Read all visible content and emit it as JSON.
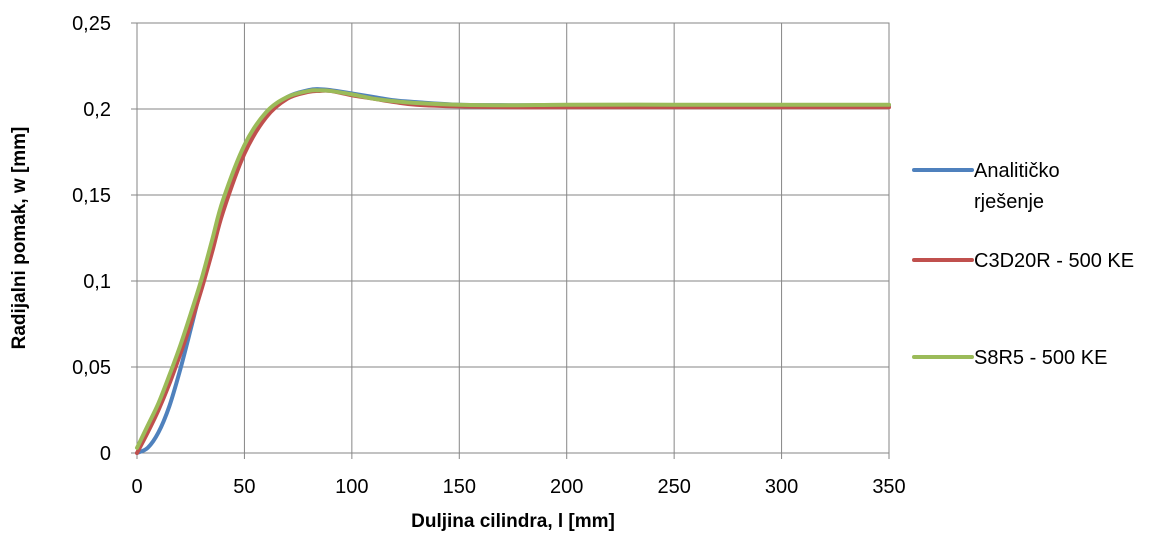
{
  "chart_data": {
    "type": "line",
    "title": "",
    "xlabel": "Duljina cilindra, l [mm]",
    "ylabel": "Radijalni pomak, w [mm]",
    "xlim": [
      0,
      350
    ],
    "ylim": [
      0,
      0.25
    ],
    "x_ticks": [
      0,
      50,
      100,
      150,
      200,
      250,
      300,
      350
    ],
    "x_tick_labels": [
      "0",
      "50",
      "100",
      "150",
      "200",
      "250",
      "300",
      "350"
    ],
    "y_ticks": [
      0,
      0.05,
      0.1,
      0.15,
      0.2,
      0.25
    ],
    "y_tick_labels": [
      "0",
      "0,05",
      "0,1",
      "0,15",
      "0,2",
      "0,25"
    ],
    "grid": true,
    "legend_position": "right",
    "series": [
      {
        "name": "Analitičko rješenje",
        "legend_lines": [
          "Analitičko",
          "rješenje"
        ],
        "color": "#4F81BD",
        "x": [
          0,
          5,
          10,
          15,
          20,
          25,
          30,
          35,
          40,
          50,
          60,
          70,
          80,
          85,
          90,
          100,
          110,
          120,
          130,
          150,
          175,
          200,
          250,
          300,
          350
        ],
        "y": [
          0,
          0.003,
          0.012,
          0.027,
          0.048,
          0.072,
          0.097,
          0.12,
          0.145,
          0.178,
          0.197,
          0.207,
          0.211,
          0.2115,
          0.211,
          0.209,
          0.207,
          0.205,
          0.204,
          0.2025,
          0.2022,
          0.2022,
          0.2022,
          0.2022,
          0.2022
        ]
      },
      {
        "name": "C3D20R - 500 KE",
        "legend_lines": [
          "C3D20R - 500 KE"
        ],
        "color": "#C0504D",
        "x": [
          0,
          5,
          10,
          15,
          20,
          25,
          30,
          35,
          40,
          50,
          60,
          70,
          80,
          85,
          90,
          100,
          110,
          120,
          130,
          150,
          175,
          200,
          250,
          300,
          350
        ],
        "y": [
          0,
          0.012,
          0.025,
          0.04,
          0.057,
          0.075,
          0.095,
          0.117,
          0.14,
          0.174,
          0.195,
          0.206,
          0.21,
          0.2105,
          0.2105,
          0.208,
          0.206,
          0.204,
          0.2025,
          0.2015,
          0.201,
          0.201,
          0.201,
          0.201,
          0.201
        ]
      },
      {
        "name": "S8R5 - 500 KE",
        "legend_lines": [
          "S8R5 - 500 KE"
        ],
        "color": "#9BBB59",
        "x": [
          0,
          5,
          10,
          15,
          20,
          25,
          30,
          35,
          40,
          50,
          60,
          70,
          80,
          85,
          90,
          100,
          110,
          120,
          130,
          150,
          175,
          200,
          250,
          300,
          350
        ],
        "y": [
          0.003,
          0.016,
          0.029,
          0.045,
          0.062,
          0.081,
          0.101,
          0.124,
          0.147,
          0.179,
          0.198,
          0.207,
          0.2105,
          0.2108,
          0.2105,
          0.2085,
          0.206,
          0.2045,
          0.2035,
          0.2025,
          0.2022,
          0.2025,
          0.2025,
          0.2025,
          0.2025
        ]
      }
    ]
  }
}
